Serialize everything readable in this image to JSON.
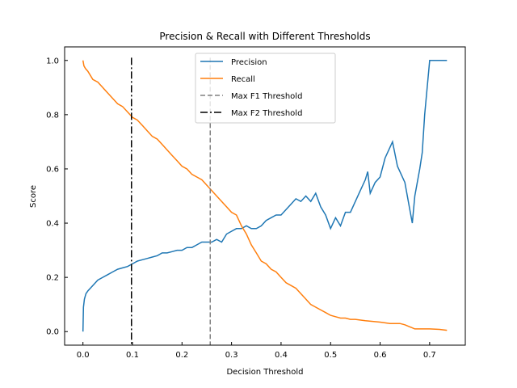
{
  "chart_data": {
    "type": "line",
    "title": "Precision & Recall with Different Thresholds",
    "xlabel": "Decision Threshold",
    "ylabel": "Score",
    "xlim": [
      -0.037,
      0.772
    ],
    "ylim": [
      -0.05,
      1.05
    ],
    "xticks": [
      0.0,
      0.1,
      0.2,
      0.3,
      0.4,
      0.5,
      0.6,
      0.7
    ],
    "xtick_labels": [
      "0.0",
      "0.1",
      "0.2",
      "0.3",
      "0.4",
      "0.5",
      "0.6",
      "0.7"
    ],
    "yticks": [
      0.0,
      0.2,
      0.4,
      0.6,
      0.8,
      1.0
    ],
    "ytick_labels": [
      "0.0",
      "0.2",
      "0.4",
      "0.6",
      "0.8",
      "1.0"
    ],
    "grid": false,
    "legend_position": "top-center",
    "series": [
      {
        "name": "Precision",
        "color": "#1f77b4",
        "style": "solid",
        "x": [
          0.0,
          0.001,
          0.003,
          0.006,
          0.01,
          0.02,
          0.03,
          0.04,
          0.05,
          0.06,
          0.07,
          0.08,
          0.09,
          0.1,
          0.11,
          0.12,
          0.13,
          0.14,
          0.15,
          0.16,
          0.17,
          0.18,
          0.19,
          0.2,
          0.21,
          0.22,
          0.23,
          0.24,
          0.25,
          0.26,
          0.27,
          0.28,
          0.29,
          0.3,
          0.31,
          0.32,
          0.33,
          0.34,
          0.35,
          0.36,
          0.37,
          0.38,
          0.39,
          0.4,
          0.41,
          0.42,
          0.43,
          0.44,
          0.45,
          0.46,
          0.47,
          0.48,
          0.49,
          0.5,
          0.51,
          0.52,
          0.53,
          0.54,
          0.55,
          0.56,
          0.57,
          0.575,
          0.58,
          0.59,
          0.6,
          0.61,
          0.625,
          0.635,
          0.65,
          0.66,
          0.665,
          0.67,
          0.68,
          0.685,
          0.69,
          0.7,
          0.71,
          0.72,
          0.735
        ],
        "y": [
          0.0,
          0.09,
          0.12,
          0.14,
          0.15,
          0.17,
          0.19,
          0.2,
          0.21,
          0.22,
          0.23,
          0.235,
          0.24,
          0.25,
          0.26,
          0.265,
          0.27,
          0.275,
          0.28,
          0.29,
          0.29,
          0.295,
          0.3,
          0.3,
          0.31,
          0.31,
          0.32,
          0.33,
          0.33,
          0.33,
          0.34,
          0.33,
          0.36,
          0.37,
          0.38,
          0.38,
          0.39,
          0.38,
          0.38,
          0.39,
          0.41,
          0.42,
          0.43,
          0.43,
          0.45,
          0.47,
          0.49,
          0.48,
          0.5,
          0.48,
          0.51,
          0.46,
          0.43,
          0.38,
          0.42,
          0.39,
          0.44,
          0.44,
          0.48,
          0.52,
          0.56,
          0.59,
          0.51,
          0.55,
          0.57,
          0.64,
          0.7,
          0.61,
          0.55,
          0.45,
          0.4,
          0.5,
          0.6,
          0.66,
          0.8,
          1.0,
          1.0,
          1.0,
          1.0
        ]
      },
      {
        "name": "Recall",
        "color": "#ff7f0e",
        "style": "solid",
        "x": [
          0.0,
          0.002,
          0.005,
          0.01,
          0.02,
          0.03,
          0.04,
          0.05,
          0.06,
          0.07,
          0.08,
          0.09,
          0.1,
          0.11,
          0.12,
          0.13,
          0.14,
          0.15,
          0.16,
          0.17,
          0.18,
          0.19,
          0.2,
          0.21,
          0.22,
          0.23,
          0.24,
          0.25,
          0.26,
          0.27,
          0.28,
          0.29,
          0.3,
          0.31,
          0.32,
          0.33,
          0.34,
          0.35,
          0.36,
          0.37,
          0.38,
          0.39,
          0.4,
          0.41,
          0.42,
          0.43,
          0.44,
          0.45,
          0.46,
          0.47,
          0.48,
          0.49,
          0.5,
          0.51,
          0.52,
          0.53,
          0.54,
          0.55,
          0.57,
          0.6,
          0.62,
          0.64,
          0.65,
          0.67,
          0.7,
          0.72,
          0.735
        ],
        "y": [
          1.0,
          0.98,
          0.97,
          0.96,
          0.93,
          0.92,
          0.9,
          0.88,
          0.86,
          0.84,
          0.83,
          0.81,
          0.79,
          0.78,
          0.76,
          0.74,
          0.72,
          0.71,
          0.69,
          0.67,
          0.65,
          0.63,
          0.61,
          0.6,
          0.58,
          0.57,
          0.56,
          0.54,
          0.52,
          0.5,
          0.48,
          0.46,
          0.44,
          0.43,
          0.39,
          0.36,
          0.32,
          0.29,
          0.26,
          0.25,
          0.23,
          0.22,
          0.2,
          0.18,
          0.17,
          0.16,
          0.14,
          0.12,
          0.1,
          0.09,
          0.08,
          0.07,
          0.06,
          0.055,
          0.05,
          0.05,
          0.045,
          0.045,
          0.04,
          0.035,
          0.03,
          0.03,
          0.025,
          0.01,
          0.01,
          0.008,
          0.005
        ]
      }
    ],
    "reference_lines": [
      {
        "name": "Max F1 Threshold",
        "x": 0.257,
        "color": "#808080",
        "style": "dashed"
      },
      {
        "name": "Max F2 Threshold",
        "x": 0.098,
        "color": "#000000",
        "style": "dashdot"
      }
    ]
  }
}
